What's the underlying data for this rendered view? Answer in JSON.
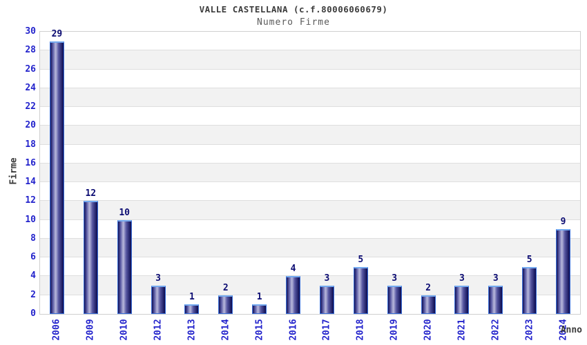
{
  "chart_data": {
    "type": "bar",
    "title": "VALLE CASTELLANA (c.f.80006060679)",
    "subtitle": "Numero Firme",
    "xlabel": "Anno",
    "ylabel": "Firme",
    "categories": [
      "2006",
      "2009",
      "2010",
      "2012",
      "2013",
      "2014",
      "2015",
      "2016",
      "2017",
      "2018",
      "2019",
      "2020",
      "2021",
      "2022",
      "2023",
      "2024"
    ],
    "values": [
      29,
      12,
      10,
      3,
      1,
      2,
      1,
      4,
      3,
      5,
      3,
      2,
      3,
      3,
      5,
      9
    ],
    "ylim": [
      0,
      30
    ],
    "ytick_step": 2,
    "grid": "horizontal-bands-alternating",
    "legend": "none",
    "bar_value_labels": [
      29,
      12,
      10,
      3,
      1,
      2,
      1,
      4,
      3,
      5,
      3,
      2,
      3,
      3,
      5,
      9
    ],
    "colors": {
      "title_color": "#3b3b3b",
      "subtitle_color": "#5a5a5a",
      "axis_blue": "#2323cc",
      "value_color": "#0b0b72",
      "band_gray": "#f2f2f2",
      "gridline": "#dedede",
      "plot_border": "#cfcfcf",
      "bar_border": "#3a6fd8",
      "bar_border_top": "#74aaf0",
      "bar_dark": "#121258",
      "bar_mid": "#5858a2",
      "bar_light": "#b9b9dc"
    }
  }
}
